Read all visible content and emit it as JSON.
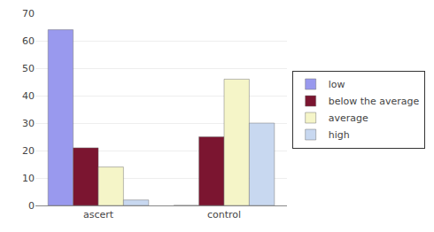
{
  "chart_data": {
    "type": "bar",
    "categories": [
      "ascert",
      "control"
    ],
    "series": [
      {
        "name": "low",
        "color": "#9999ee",
        "values": [
          64,
          0
        ]
      },
      {
        "name": "below the average",
        "color": "#7B1530",
        "values": [
          21,
          25
        ]
      },
      {
        "name": "average",
        "color": "#f5f5c8",
        "values": [
          14,
          46
        ]
      },
      {
        "name": "high",
        "color": "#c8d8f0",
        "values": [
          2,
          30
        ]
      }
    ],
    "ylim": [
      0,
      70
    ],
    "yticks": [
      0,
      10,
      20,
      30,
      40,
      50,
      60,
      70
    ],
    "grid": true,
    "legend": "right"
  }
}
